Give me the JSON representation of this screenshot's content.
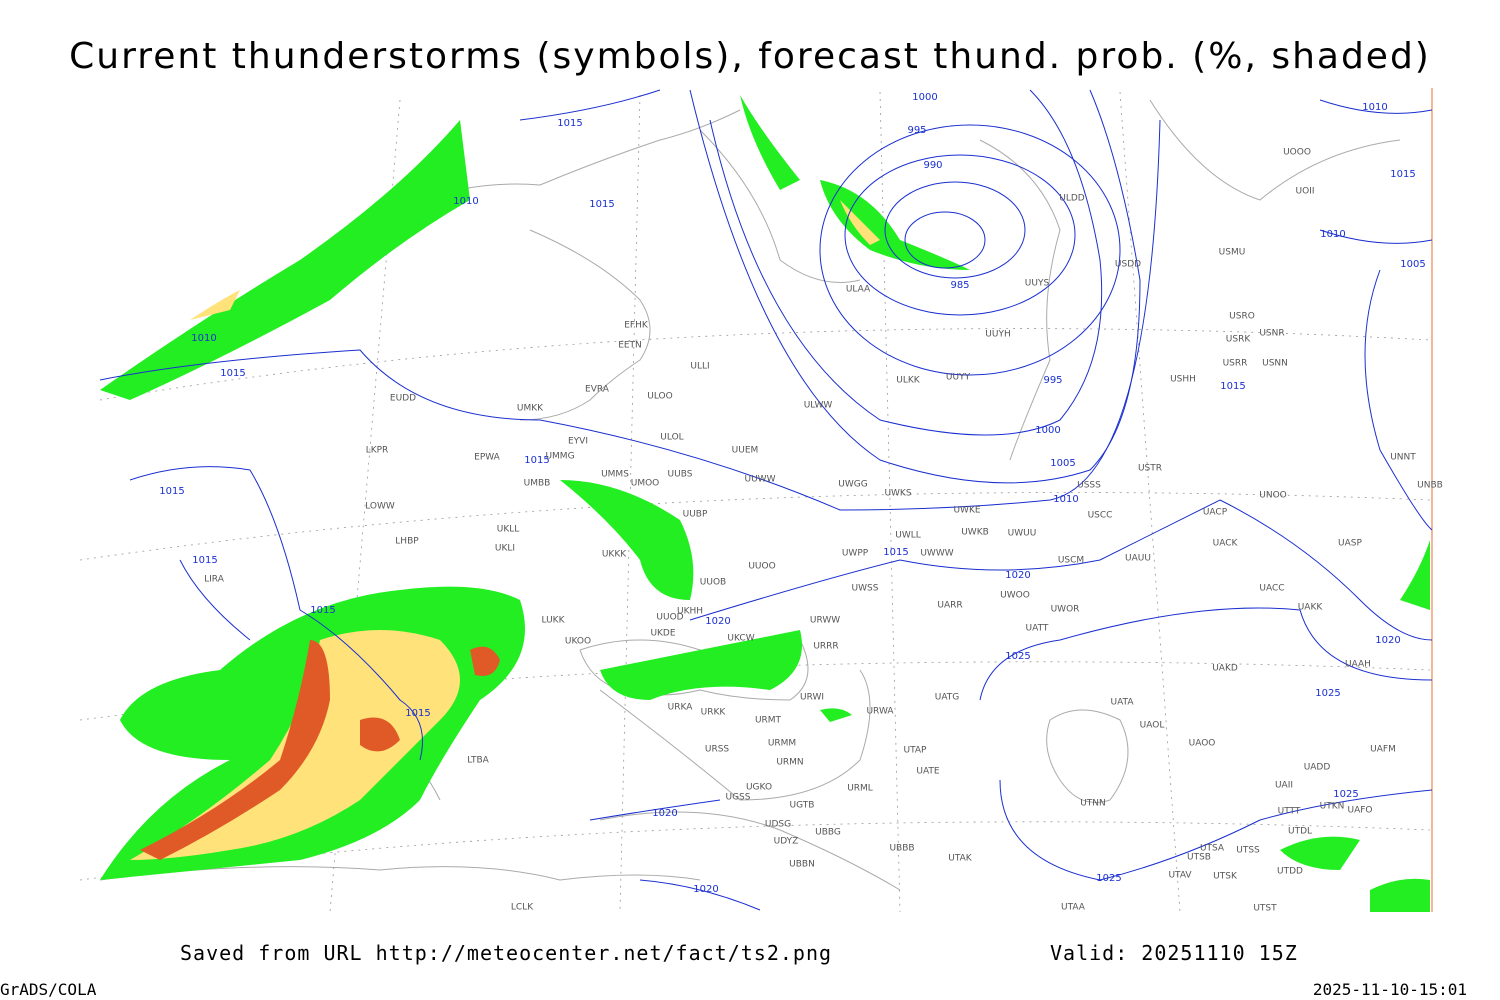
{
  "header": {
    "title": "Current thunderstorms (symbols), forecast thund. prob. (%, shaded)"
  },
  "map": {
    "isobar_labels": [
      1015,
      1000,
      995,
      990,
      1010,
      1015,
      985,
      1010,
      1015,
      995,
      1000,
      1005,
      1010,
      1015,
      1015,
      1015,
      1015,
      1020,
      1015,
      1020,
      1025,
      1015,
      1020,
      1020,
      1025,
      1010,
      1015,
      1010,
      1005,
      1015,
      1020,
      1025,
      1025
    ],
    "stations": [
      "UOOO",
      "UOII",
      "ULDD",
      "USDD",
      "USMU",
      "ULAA",
      "UUYS",
      "USRO",
      "USRK",
      "USNR",
      "USRR",
      "USNN",
      "UUYH",
      "EFHK",
      "EETN",
      "ULLI",
      "ULKK",
      "UUYY",
      "USHH",
      "EVRA",
      "ULOO",
      "EUDD",
      "ULWW",
      "UMKK",
      "ULOL",
      "EYVI",
      "UUEM",
      "LKPR",
      "EPWA",
      "UMMG",
      "UMMS",
      "UUBS",
      "UUWW",
      "UMBB",
      "UMOO",
      "UWGG",
      "UWKS",
      "USTR",
      "UNNT",
      "UNBB",
      "USSS",
      "LOWW",
      "UUBP",
      "UWKE",
      "UNOO",
      "UACP",
      "USCC",
      "UKLL",
      "UWKB",
      "UWUU",
      "LHBP",
      "UKLI",
      "UKKK",
      "UWLL",
      "UWWW",
      "UWPP",
      "USCM",
      "UAUU",
      "UACK",
      "UASP",
      "UUOO",
      "LIRA",
      "UUOB",
      "UWSS",
      "UACC",
      "UKHH",
      "UWOO",
      "UARR",
      "UWOR",
      "UAKK",
      "LUKK",
      "UUOD",
      "URWW",
      "UATT",
      "UKOO",
      "UKDE",
      "UKCW",
      "URRR",
      "UAKD",
      "UAAH",
      "URWI",
      "UATG",
      "URKA",
      "URKK",
      "URWA",
      "UATA",
      "URMT",
      "UAOL",
      "URMM",
      "UTAP",
      "UAOO",
      "URSS",
      "URMN",
      "UATE",
      "UAFM",
      "UADD",
      "UGKO",
      "URML",
      "UAII",
      "UGSS",
      "UGTB",
      "UTNN",
      "UTKN",
      "UAFO",
      "UTTT",
      "UDSG",
      "UBBG",
      "UTDL",
      "UDYZ",
      "UTSA",
      "UTSS",
      "UBBB",
      "UTAK",
      "UTSB",
      "UBBN",
      "UTDD",
      "UTAV",
      "UTSK",
      "LCLK",
      "UTAA",
      "UTST",
      "LTBA"
    ]
  },
  "footer": {
    "source": "Saved from URL http://meteocenter.net/fact/ts2.png",
    "valid": "Valid: 20251110 15Z",
    "software": "GrADS/COLA",
    "timestamp": "2025-11-10-15:01"
  }
}
